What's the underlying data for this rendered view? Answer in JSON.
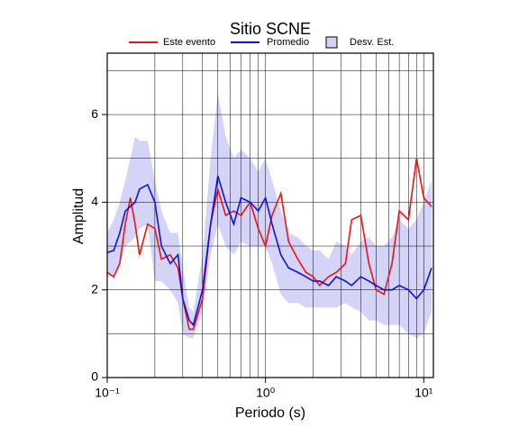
{
  "chart_data": {
    "type": "line",
    "title": "Sitio SCNE",
    "xlabel": "Periodo (s)",
    "ylabel": "Amplitud",
    "log_x": true,
    "grid": true,
    "xlim": [
      0.1,
      11.5
    ],
    "xticks": [
      {
        "value": 0.1,
        "label": "10⁻¹"
      },
      {
        "value": 1,
        "label": "10⁰"
      },
      {
        "value": 10,
        "label": "10¹"
      }
    ],
    "xminor": [
      0.2,
      0.3,
      0.4,
      0.5,
      0.6,
      0.7,
      0.8,
      0.9,
      2,
      3,
      4,
      5,
      6,
      7,
      8,
      9
    ],
    "ylim": [
      0,
      7.4
    ],
    "yticks": [
      0,
      2,
      4,
      6
    ],
    "yminor": [
      1,
      3,
      5,
      7
    ],
    "x": [
      0.1,
      0.11,
      0.12,
      0.13,
      0.14,
      0.15,
      0.16,
      0.18,
      0.2,
      0.22,
      0.25,
      0.28,
      0.3,
      0.33,
      0.35,
      0.4,
      0.45,
      0.5,
      0.56,
      0.63,
      0.7,
      0.8,
      0.9,
      1.0,
      1.1,
      1.25,
      1.4,
      1.6,
      1.8,
      2,
      2.2,
      2.5,
      2.8,
      3.2,
      3.5,
      4,
      4.5,
      5,
      5.6,
      6.3,
      7,
      8,
      9,
      10,
      11.2
    ],
    "band": {
      "name": "Desv. Est.",
      "color": "#d4d4f8",
      "lower": [
        2.3,
        2.3,
        2.6,
        3.0,
        3.1,
        3.2,
        3.4,
        3.5,
        2.2,
        2.2,
        2.0,
        1.7,
        1.0,
        0.9,
        0.9,
        1.5,
        2.8,
        3.5,
        3.0,
        2.8,
        3.1,
        3.0,
        3.0,
        3.0,
        2.6,
        1.9,
        1.7,
        1.7,
        1.6,
        1.6,
        1.6,
        1.6,
        1.6,
        1.7,
        1.6,
        1.5,
        1.3,
        1.3,
        1.2,
        1.2,
        1.2,
        1.0,
        0.9,
        1.0,
        1.5
      ],
      "upper": [
        3.3,
        3.6,
        4.0,
        4.5,
        5.0,
        5.5,
        5.4,
        5.4,
        4.5,
        3.8,
        3.3,
        3.3,
        2.5,
        1.6,
        1.5,
        2.8,
        5.0,
        6.5,
        5.5,
        5.0,
        5.2,
        5.0,
        4.7,
        5.0,
        4.5,
        3.8,
        3.3,
        3.2,
        3.0,
        2.9,
        2.9,
        2.7,
        3.1,
        3.0,
        2.8,
        3.1,
        3.2,
        3.0,
        3.0,
        3.2,
        3.6,
        3.4,
        3.6,
        4.0,
        4.5
      ]
    },
    "series": [
      {
        "name": "Este evento",
        "color": "#ee1111",
        "values": [
          2.4,
          2.3,
          2.6,
          3.5,
          4.1,
          3.5,
          2.8,
          3.5,
          3.4,
          2.7,
          2.8,
          2.5,
          1.8,
          1.1,
          1.1,
          1.8,
          3.5,
          4.3,
          3.7,
          3.8,
          3.7,
          4.0,
          3.4,
          3.0,
          3.7,
          4.2,
          3.1,
          2.7,
          2.4,
          2.3,
          2.1,
          2.3,
          2.4,
          2.6,
          3.6,
          3.7,
          2.6,
          2.0,
          1.9,
          2.6,
          3.8,
          3.6,
          5.0,
          4.1,
          3.9
        ]
      },
      {
        "name": "Promedio",
        "color": "#1111dd",
        "values": [
          2.85,
          2.9,
          3.3,
          3.8,
          3.9,
          4.0,
          4.3,
          4.4,
          4.0,
          3.0,
          2.6,
          2.8,
          1.8,
          1.3,
          1.2,
          2.0,
          3.5,
          4.6,
          4.0,
          3.5,
          4.1,
          4.0,
          3.8,
          4.1,
          3.5,
          2.8,
          2.5,
          2.4,
          2.3,
          2.2,
          2.2,
          2.1,
          2.3,
          2.2,
          2.1,
          2.3,
          2.2,
          2.1,
          2.0,
          2.0,
          2.1,
          2.0,
          1.8,
          2.0,
          2.5
        ]
      }
    ]
  }
}
